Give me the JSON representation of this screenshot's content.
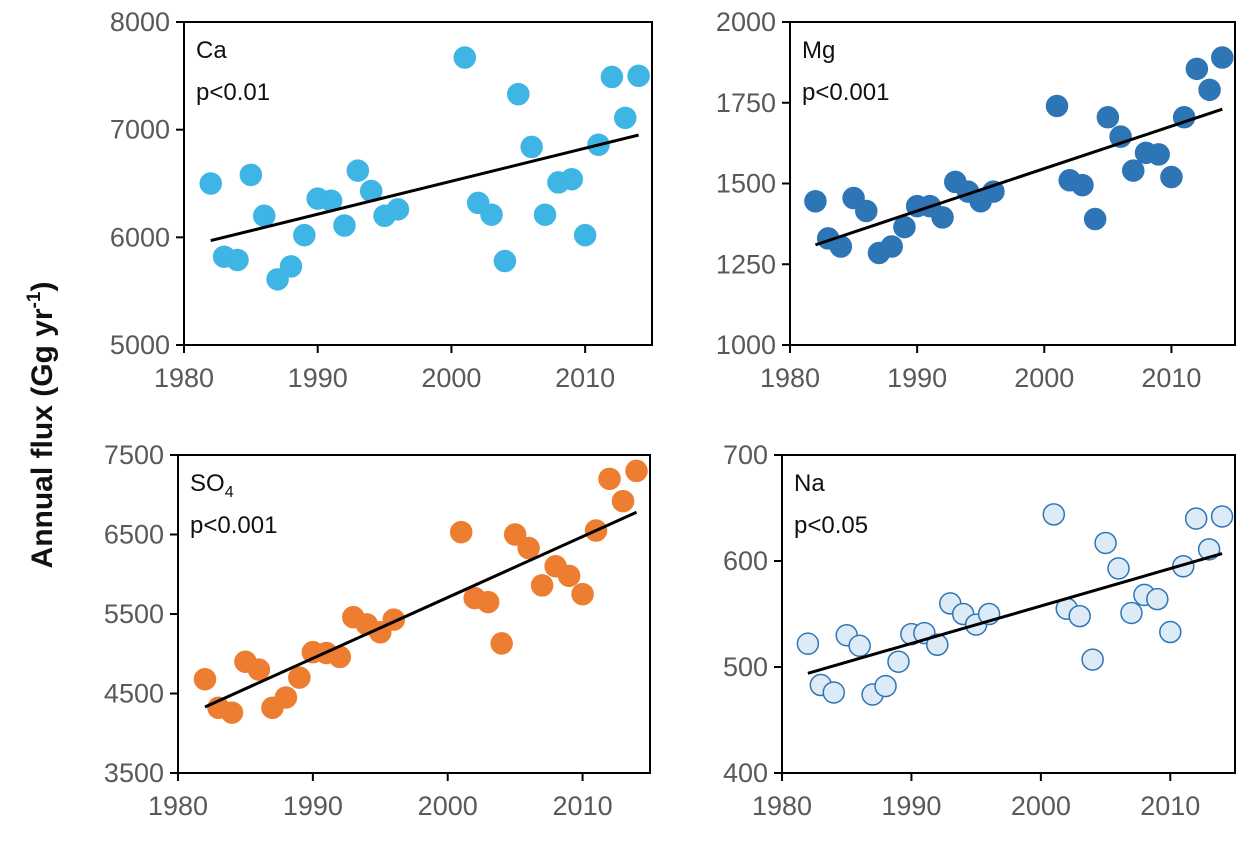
{
  "figure": {
    "ylabel_main": "Annual flux (Gg yr",
    "ylabel_sup": "-1",
    "ylabel_close": ")"
  },
  "chart_data": [
    {
      "type": "scatter",
      "element": "Ca",
      "element_sub": "",
      "pvalue": "p<0.01",
      "xlim": [
        1980,
        2015
      ],
      "ylim": [
        5000,
        8000
      ],
      "xticks": [
        "1980",
        "1990",
        "2000",
        "2010"
      ],
      "yticks": [
        "5000",
        "6000",
        "7000",
        "8000"
      ],
      "marker_fill": "#3FB5E5",
      "marker_stroke": "#3FB5E5",
      "x": [
        1982,
        1983,
        1984,
        1985,
        1986,
        1987,
        1988,
        1989,
        1990,
        1991,
        1992,
        1993,
        1994,
        1995,
        1996,
        2001,
        2002,
        2003,
        2004,
        2005,
        2006,
        2007,
        2008,
        2009,
        2010,
        2011,
        2012,
        2013,
        2014
      ],
      "y": [
        6500,
        5820,
        5790,
        6580,
        6200,
        5610,
        5730,
        6020,
        6360,
        6340,
        6110,
        6620,
        6430,
        6200,
        6260,
        7670,
        6320,
        6210,
        5780,
        7330,
        6840,
        6210,
        6510,
        6540,
        6020,
        6860,
        7490,
        7110,
        7500
      ],
      "trend": [
        [
          1982,
          5970
        ],
        [
          2014,
          6950
        ]
      ]
    },
    {
      "type": "scatter",
      "element": "Mg",
      "element_sub": "",
      "pvalue": "p<0.001",
      "xlim": [
        1980,
        2015
      ],
      "ylim": [
        1000,
        2000
      ],
      "xticks": [
        "1980",
        "1990",
        "2000",
        "2010"
      ],
      "yticks": [
        "1000",
        "1250",
        "1500",
        "1750",
        "2000"
      ],
      "marker_fill": "#2E75B6",
      "marker_stroke": "#2E75B6",
      "x": [
        1982,
        1983,
        1984,
        1985,
        1986,
        1987,
        1988,
        1989,
        1990,
        1991,
        1992,
        1993,
        1994,
        1995,
        1996,
        2001,
        2002,
        2003,
        2004,
        2005,
        2006,
        2007,
        2008,
        2009,
        2010,
        2011,
        2012,
        2013,
        2014
      ],
      "y": [
        1445,
        1330,
        1305,
        1455,
        1415,
        1285,
        1305,
        1365,
        1430,
        1430,
        1395,
        1505,
        1475,
        1445,
        1475,
        1740,
        1510,
        1495,
        1390,
        1705,
        1645,
        1540,
        1595,
        1590,
        1520,
        1705,
        1855,
        1790,
        1890
      ],
      "trend": [
        [
          1982,
          1310
        ],
        [
          2014,
          1730
        ]
      ]
    },
    {
      "type": "scatter",
      "element": "SO",
      "element_sub": "4",
      "pvalue": "p<0.001",
      "xlim": [
        1980,
        2015
      ],
      "ylim": [
        3500,
        7500
      ],
      "xticks": [
        "1980",
        "1990",
        "2000",
        "2010"
      ],
      "yticks": [
        "3500",
        "4500",
        "5500",
        "6500",
        "7500"
      ],
      "marker_fill": "#ED7D31",
      "marker_stroke": "#ED7D31",
      "x": [
        1982,
        1983,
        1984,
        1985,
        1986,
        1987,
        1988,
        1989,
        1990,
        1991,
        1992,
        1993,
        1994,
        1995,
        1996,
        2001,
        2002,
        2003,
        2004,
        2005,
        2006,
        2007,
        2008,
        2009,
        2010,
        2011,
        2012,
        2013,
        2014
      ],
      "y": [
        4680,
        4320,
        4260,
        4900,
        4800,
        4320,
        4450,
        4700,
        5020,
        5010,
        4960,
        5460,
        5370,
        5270,
        5430,
        6530,
        5700,
        5650,
        5130,
        6500,
        6330,
        5860,
        6100,
        5980,
        5750,
        6550,
        7200,
        6920,
        7300
      ],
      "trend": [
        [
          1982,
          4330
        ],
        [
          2014,
          6780
        ]
      ]
    },
    {
      "type": "scatter",
      "element": "Na",
      "element_sub": "",
      "pvalue": "p<0.05",
      "xlim": [
        1980,
        2015
      ],
      "ylim": [
        400,
        700
      ],
      "xticks": [
        "1980",
        "1990",
        "2000",
        "2010"
      ],
      "yticks": [
        "400",
        "500",
        "600",
        "700"
      ],
      "marker_fill": "#DDEBF7",
      "marker_stroke": "#2E75B6",
      "x": [
        1982,
        1983,
        1984,
        1985,
        1986,
        1987,
        1988,
        1989,
        1990,
        1991,
        1992,
        1993,
        1994,
        1995,
        1996,
        2001,
        2002,
        2003,
        2004,
        2005,
        2006,
        2007,
        2008,
        2009,
        2010,
        2011,
        2012,
        2013,
        2014
      ],
      "y": [
        522,
        483,
        476,
        530,
        520,
        474,
        482,
        505,
        531,
        532,
        521,
        560,
        550,
        540,
        550,
        644,
        555,
        548,
        507,
        617,
        593,
        551,
        568,
        564,
        533,
        595,
        640,
        611,
        642
      ],
      "trend": [
        [
          1982,
          494
        ],
        [
          2014,
          607
        ]
      ]
    }
  ]
}
